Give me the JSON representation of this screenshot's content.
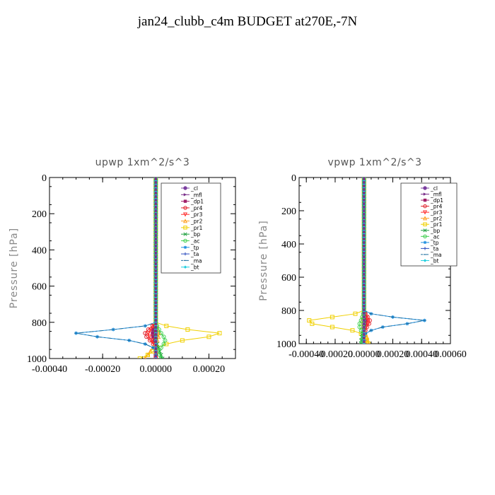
{
  "figure": {
    "title": "jan24_clubb_c4m  BUDGET at270E,-7N"
  },
  "chart_data": [
    {
      "type": "line",
      "title": "upwp   1xm^2/s^3",
      "ylabel": "Pressure [hPa]",
      "xlabel": "",
      "ylim": [
        1000,
        0
      ],
      "xlim": [
        -0.0004,
        0.0003
      ],
      "y_ticks": [
        0,
        200,
        400,
        600,
        800,
        1000
      ],
      "y_tick_labels": [
        "0",
        "200",
        "400",
        "600",
        "800",
        "1000"
      ],
      "x_ticks": [
        -0.0004,
        -0.0002,
        0,
        0.0002
      ],
      "x_tick_labels": [
        "-0.00040",
        "-0.00020",
        "0.00000",
        "0.00020"
      ],
      "legend_position": "top-right",
      "grid": false,
      "pressure": [
        0,
        20,
        40,
        60,
        80,
        100,
        120,
        140,
        160,
        180,
        200,
        220,
        240,
        260,
        280,
        300,
        320,
        340,
        360,
        380,
        400,
        420,
        440,
        460,
        480,
        500,
        520,
        540,
        560,
        580,
        600,
        620,
        640,
        660,
        680,
        700,
        720,
        740,
        760,
        780,
        800,
        820,
        840,
        860,
        880,
        900,
        920,
        940,
        960,
        980,
        1000
      ],
      "series": [
        {
          "name": "_cl",
          "color": "#7b3fa0",
          "marker": "circle",
          "dash": "",
          "values": {
            "800": 0.0,
            "820": 0.0,
            "840": 0.0,
            "860": 0.0,
            "880": 0.0,
            "900": 0.0,
            "920": 0.0,
            "940": 0.0,
            "960": 0.0,
            "980": 0.0,
            "1000": 0.0
          }
        },
        {
          "name": "_mfl",
          "color": "#7a2f8a",
          "marker": "triangle-right",
          "dash": "",
          "values": {
            "800": 0.0,
            "820": 0.0,
            "840": 0.0,
            "860": 0.0,
            "880": 0.0,
            "900": 0.0,
            "920": 0.0,
            "940": 0.0,
            "960": 0.0,
            "980": 0.0,
            "1000": 0.0
          }
        },
        {
          "name": "_dp1",
          "color": "#a0206a",
          "marker": "square",
          "dash": "",
          "values": {
            "800": 0.0,
            "820": -5e-06,
            "840": -1e-05,
            "860": -1.2e-05,
            "880": -1e-05,
            "900": -6e-06,
            "920": -2e-06,
            "940": 0.0,
            "960": 0.0,
            "980": 0.0,
            "1000": 0.0
          }
        },
        {
          "name": "_pr4",
          "color": "#e0202a",
          "marker": "circle-open",
          "dash": "",
          "values": {
            "800": 0.0,
            "820": -1.2e-05,
            "840": -2.8e-05,
            "860": -4e-05,
            "880": -3.5e-05,
            "900": -2.2e-05,
            "920": -1e-05,
            "940": -4e-06,
            "960": 0.0,
            "980": 0.0,
            "1000": 0.0
          }
        },
        {
          "name": "_pr3",
          "color": "#ff3030",
          "marker": "triangle-down",
          "dash": "",
          "values": {
            "800": 0.0,
            "820": -8e-06,
            "840": -2e-05,
            "860": -2.8e-05,
            "880": -2.4e-05,
            "900": -1.4e-05,
            "920": -6e-06,
            "940": 0.0,
            "960": 0.0,
            "980": 0.0,
            "1000": 0.0
          }
        },
        {
          "name": "_pr2",
          "color": "#ffa020",
          "marker": "triangle",
          "dash": "",
          "values": {
            "800": 0.0,
            "820": 4e-06,
            "840": 8e-06,
            "860": 1.2e-05,
            "880": 1e-05,
            "900": 6e-06,
            "920": 0.0,
            "940": -1e-05,
            "960": -2e-05,
            "980": -3e-05,
            "1000": -4e-05
          }
        },
        {
          "name": "_pr1",
          "color": "#f0d000",
          "marker": "square-open",
          "dash": "",
          "values": {
            "800": 0.0,
            "820": 4e-05,
            "840": 0.00012,
            "860": 0.00024,
            "880": 0.0002,
            "900": 0.0001,
            "920": 4e-05,
            "940": 5e-06,
            "960": -1e-05,
            "980": -3e-05,
            "1000": -6e-05
          }
        },
        {
          "name": "_bp",
          "color": "#20a040",
          "marker": "x",
          "dash": "",
          "values": {
            "800": 0.0,
            "820": 0.0,
            "840": 0.0,
            "860": 0.0,
            "880": 0.0,
            "900": 0.0,
            "920": 5e-06,
            "940": 1e-05,
            "960": 1.5e-05,
            "980": 2e-05,
            "1000": 2.5e-05
          }
        },
        {
          "name": "_ac",
          "color": "#40d050",
          "marker": "circle-open",
          "dash": "",
          "values": {
            "800": 0.0,
            "820": 5e-06,
            "840": 1.2e-05,
            "860": 2e-05,
            "880": 3e-05,
            "900": 3.5e-05,
            "920": 3e-05,
            "940": 2e-05,
            "960": 1e-05,
            "980": 1.5e-05,
            "1000": 2e-05
          }
        },
        {
          "name": "_tp",
          "color": "#2090e0",
          "marker": "asterisk",
          "dash": "",
          "values": {
            "800": 0.0,
            "820": -4e-05,
            "840": -0.00016,
            "860": -0.0003,
            "880": -0.00022,
            "900": -0.0001,
            "920": -4e-05,
            "940": -1e-05,
            "960": 0.0,
            "980": 0.0,
            "1000": 0.0
          }
        },
        {
          "name": "_ta",
          "color": "#3050c0",
          "marker": "plus",
          "dash": "",
          "values": {
            "800": 0.0,
            "820": 0.0,
            "840": 0.0,
            "860": 0.0,
            "880": 0.0,
            "900": 0.0,
            "920": 0.0,
            "940": 0.0,
            "960": 0.0,
            "980": 0.0,
            "1000": 0.0
          }
        },
        {
          "name": "_ma",
          "color": "#2070a0",
          "marker": "dash",
          "dash": "6,3,2,3",
          "values": {
            "800": 0.0,
            "820": -4e-05,
            "840": -0.00016,
            "860": -0.0003,
            "880": -0.00022,
            "900": -0.0001,
            "920": -4e-05,
            "940": -1e-05,
            "960": 0.0,
            "980": 0.0,
            "1000": 0.0
          }
        },
        {
          "name": "_bt",
          "color": "#20d0e0",
          "marker": "diamond",
          "dash": "",
          "values": {
            "800": 0.0,
            "820": 0.0,
            "840": 0.0,
            "860": 0.0,
            "880": 0.0,
            "900": 0.0,
            "920": 0.0,
            "940": 0.0,
            "960": 0.0,
            "980": 0.0,
            "1000": 0.0
          }
        }
      ]
    },
    {
      "type": "line",
      "title": "vpwp   1xm^2/s^3",
      "ylabel": "Pressure [hPa]",
      "xlabel": "",
      "ylim": [
        1000,
        0
      ],
      "xlim": [
        -0.00045,
        0.0006
      ],
      "y_ticks": [
        0,
        200,
        400,
        600,
        800,
        1000
      ],
      "y_tick_labels": [
        "0",
        "200",
        "400",
        "600",
        "800",
        "1000"
      ],
      "x_ticks": [
        -0.0004,
        -0.0002,
        0,
        0.0002,
        0.0004,
        0.0006
      ],
      "x_tick_labels": [
        "-0.00040",
        "-0.00020",
        "0.00000",
        "0.00020",
        "0.00040",
        "0.00060"
      ],
      "legend_position": "top-right",
      "grid": false,
      "series": [
        {
          "name": "_cl",
          "color": "#7b3fa0",
          "marker": "circle",
          "dash": "",
          "values": {
            "800": 0.0,
            "820": 0.0,
            "840": 0.0,
            "860": 0.0,
            "880": 0.0,
            "900": 0.0,
            "920": 0.0,
            "940": 0.0,
            "960": 0.0,
            "980": 0.0,
            "1000": 0.0
          }
        },
        {
          "name": "_mfl",
          "color": "#7a2f8a",
          "marker": "triangle-right",
          "dash": "",
          "values": {
            "800": 0.0,
            "820": 0.0,
            "840": 0.0,
            "860": 0.0,
            "880": 0.0,
            "900": 0.0,
            "920": 0.0,
            "940": 0.0,
            "960": 0.0,
            "980": 0.0,
            "1000": 0.0
          }
        },
        {
          "name": "_dp1",
          "color": "#a0206a",
          "marker": "square",
          "dash": "",
          "values": {
            "800": 0.0,
            "820": 5e-06,
            "840": 1e-05,
            "860": 1.2e-05,
            "880": 1e-05,
            "900": 6e-06,
            "920": 2e-06,
            "940": 0.0,
            "960": 0.0,
            "980": 0.0,
            "1000": 0.0
          }
        },
        {
          "name": "_pr4",
          "color": "#e0202a",
          "marker": "circle-open",
          "dash": "",
          "values": {
            "800": 0.0,
            "820": 1e-05,
            "840": 2.5e-05,
            "860": 4e-05,
            "880": 3.5e-05,
            "900": 2e-05,
            "920": 1e-05,
            "940": 4e-06,
            "960": 0.0,
            "980": 0.0,
            "1000": 0.0
          }
        },
        {
          "name": "_pr3",
          "color": "#ff3030",
          "marker": "triangle-down",
          "dash": "",
          "values": {
            "800": 0.0,
            "820": 8e-06,
            "840": 1.8e-05,
            "860": 2.8e-05,
            "880": 2.4e-05,
            "900": 1.4e-05,
            "920": 6e-06,
            "940": 0.0,
            "960": 0.0,
            "980": 0.0,
            "1000": 0.0
          }
        },
        {
          "name": "_pr2",
          "color": "#ffa020",
          "marker": "triangle",
          "dash": "",
          "values": {
            "800": 0.0,
            "820": -4e-06,
            "840": -8e-06,
            "860": -1.2e-05,
            "880": -1e-05,
            "900": -6e-06,
            "920": 0.0,
            "940": 1e-05,
            "960": 2e-05,
            "980": 2.5e-05,
            "1000": 3e-05
          }
        },
        {
          "name": "_pr1",
          "color": "#f0d000",
          "marker": "square-open",
          "dash": "",
          "values": {
            "800": 0.0,
            "820": -6e-05,
            "840": -0.00022,
            "860": -0.00038,
            "880": -0.00036,
            "900": -0.00022,
            "920": -8e-05,
            "940": -2e-05,
            "960": 1e-05,
            "980": 2e-05,
            "1000": 3e-05
          }
        },
        {
          "name": "_bp",
          "color": "#20a040",
          "marker": "x",
          "dash": "",
          "values": {
            "800": 0.0,
            "820": 0.0,
            "840": 0.0,
            "860": 0.0,
            "880": 0.0,
            "900": 0.0,
            "920": -5e-06,
            "940": -1e-05,
            "960": -1.5e-05,
            "980": -2e-05,
            "1000": -2e-05
          }
        },
        {
          "name": "_ac",
          "color": "#40d050",
          "marker": "circle-open",
          "dash": "",
          "values": {
            "800": 0.0,
            "820": -5e-06,
            "840": -1.2e-05,
            "860": -2e-05,
            "880": -3e-05,
            "900": -3e-05,
            "920": -2e-05,
            "940": -1e-05,
            "960": -5e-06,
            "980": -1e-05,
            "1000": -1.5e-05
          }
        },
        {
          "name": "_tp",
          "color": "#2090e0",
          "marker": "asterisk",
          "dash": "",
          "values": {
            "800": 0.0,
            "820": 5e-05,
            "840": 0.0002,
            "860": 0.00042,
            "880": 0.0003,
            "900": 0.00013,
            "920": 5e-05,
            "940": 1e-05,
            "960": 0.0,
            "980": 0.0,
            "1000": 0.0
          }
        },
        {
          "name": "_ta",
          "color": "#3050c0",
          "marker": "plus",
          "dash": "",
          "values": {
            "800": 0.0,
            "820": 0.0,
            "840": 0.0,
            "860": 0.0,
            "880": 0.0,
            "900": 0.0,
            "920": 0.0,
            "940": 0.0,
            "960": 0.0,
            "980": 0.0,
            "1000": 0.0
          }
        },
        {
          "name": "_ma",
          "color": "#2070a0",
          "marker": "dash",
          "dash": "6,3,2,3",
          "values": {
            "800": 0.0,
            "820": 5e-05,
            "840": 0.0002,
            "860": 0.00042,
            "880": 0.0003,
            "900": 0.00013,
            "920": 5e-05,
            "940": 1e-05,
            "960": 0.0,
            "980": 0.0,
            "1000": 0.0
          }
        },
        {
          "name": "_bt",
          "color": "#20d0e0",
          "marker": "diamond",
          "dash": "",
          "values": {
            "800": 0.0,
            "820": 0.0,
            "840": 0.0,
            "860": 0.0,
            "880": 0.0,
            "900": 0.0,
            "920": 0.0,
            "940": 0.0,
            "960": 0.0,
            "980": 0.0,
            "1000": 0.0
          }
        }
      ]
    }
  ]
}
